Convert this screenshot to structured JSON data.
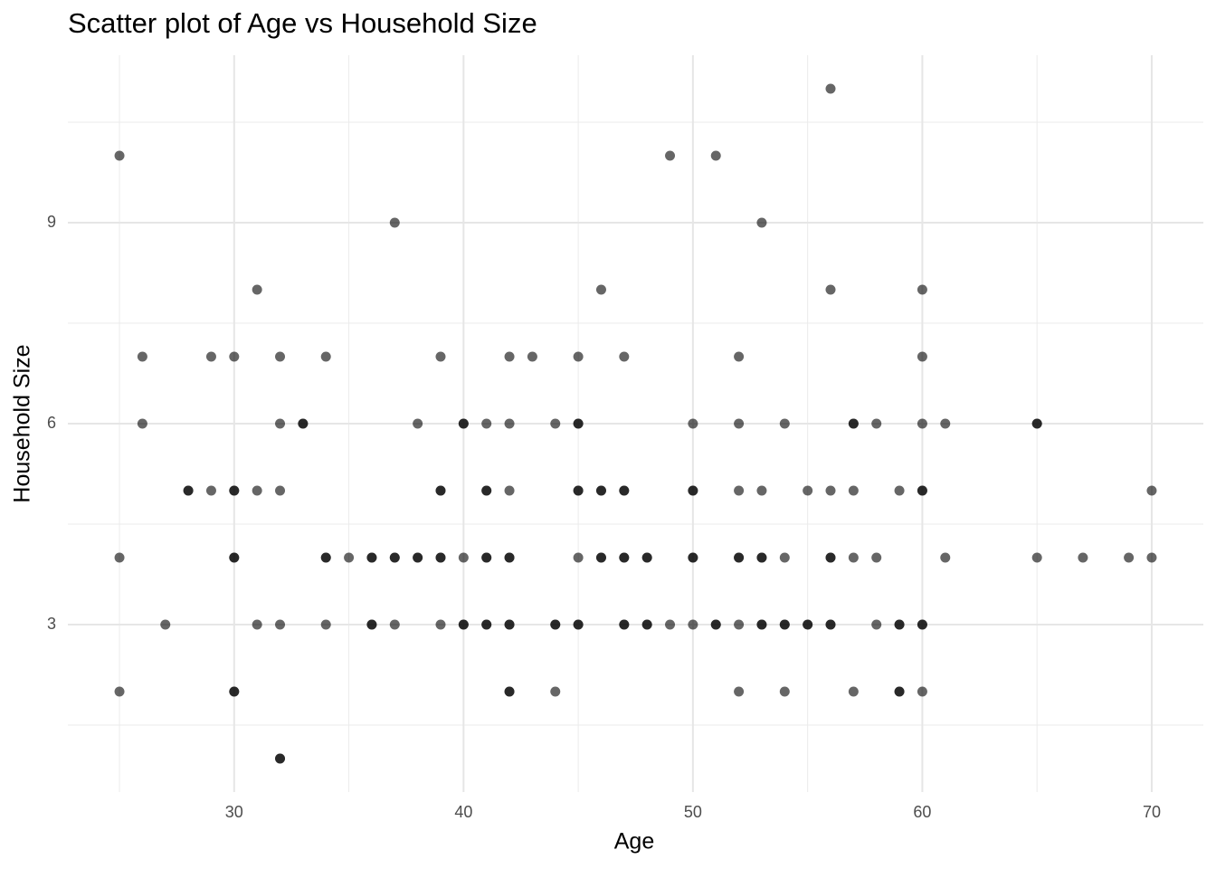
{
  "chart_data": {
    "type": "scatter",
    "title": "Scatter plot of Age vs Household Size",
    "x_label": "Age",
    "y_label": "Household Size",
    "x": [
      56,
      25,
      49,
      51,
      37,
      53,
      31,
      46,
      56,
      60,
      26,
      29,
      30,
      32,
      34,
      39,
      42,
      43,
      45,
      47,
      52,
      60,
      26,
      32,
      33,
      33,
      38,
      40,
      40,
      41,
      42,
      44,
      45,
      45,
      50,
      52,
      54,
      57,
      57,
      58,
      60,
      61,
      65,
      65,
      28,
      28,
      29,
      30,
      30,
      31,
      32,
      39,
      39,
      41,
      41,
      42,
      45,
      45,
      46,
      46,
      47,
      47,
      50,
      50,
      52,
      53,
      55,
      56,
      57,
      59,
      60,
      60,
      70,
      25,
      30,
      30,
      34,
      34,
      35,
      36,
      36,
      37,
      37,
      38,
      38,
      39,
      39,
      40,
      41,
      41,
      42,
      42,
      45,
      46,
      46,
      47,
      47,
      48,
      48,
      50,
      50,
      52,
      52,
      53,
      53,
      54,
      56,
      56,
      57,
      58,
      61,
      65,
      67,
      69,
      70,
      27,
      31,
      32,
      34,
      36,
      36,
      37,
      39,
      40,
      40,
      41,
      41,
      42,
      42,
      44,
      44,
      45,
      45,
      47,
      47,
      48,
      48,
      49,
      50,
      51,
      51,
      52,
      53,
      53,
      54,
      54,
      55,
      55,
      56,
      56,
      58,
      59,
      59,
      60,
      60,
      25,
      30,
      30,
      42,
      42,
      44,
      52,
      54,
      57,
      59,
      59,
      60,
      32,
      32
    ],
    "values": [
      11,
      10,
      10,
      10,
      9,
      9,
      8,
      8,
      8,
      8,
      7,
      7,
      7,
      7,
      7,
      7,
      7,
      7,
      7,
      7,
      7,
      7,
      6,
      6,
      6,
      6,
      6,
      6,
      6,
      6,
      6,
      6,
      6,
      6,
      6,
      6,
      6,
      6,
      6,
      6,
      6,
      6,
      6,
      6,
      5,
      5,
      5,
      5,
      5,
      5,
      5,
      5,
      5,
      5,
      5,
      5,
      5,
      5,
      5,
      5,
      5,
      5,
      5,
      5,
      5,
      5,
      5,
      5,
      5,
      5,
      5,
      5,
      5,
      4,
      4,
      4,
      4,
      4,
      4,
      4,
      4,
      4,
      4,
      4,
      4,
      4,
      4,
      4,
      4,
      4,
      4,
      4,
      4,
      4,
      4,
      4,
      4,
      4,
      4,
      4,
      4,
      4,
      4,
      4,
      4,
      4,
      4,
      4,
      4,
      4,
      4,
      4,
      4,
      4,
      4,
      3,
      3,
      3,
      3,
      3,
      3,
      3,
      3,
      3,
      3,
      3,
      3,
      3,
      3,
      3,
      3,
      3,
      3,
      3,
      3,
      3,
      3,
      3,
      3,
      3,
      3,
      3,
      3,
      3,
      3,
      3,
      3,
      3,
      3,
      3,
      3,
      3,
      3,
      3,
      3,
      2,
      2,
      2,
      2,
      2,
      2,
      2,
      2,
      2,
      2,
      2,
      2,
      1,
      1
    ],
    "color": "#000000",
    "xlim": [
      22.75,
      72.25
    ],
    "ylim": [
      0.5,
      11.5
    ],
    "xticks": [
      30,
      40,
      50,
      60,
      70
    ],
    "yticks": [
      3,
      6,
      9
    ],
    "minor_xticks": [
      25,
      35,
      45,
      55,
      65
    ],
    "minor_yticks": [
      1.5,
      4.5,
      7.5,
      10.5
    ],
    "grid": true
  }
}
